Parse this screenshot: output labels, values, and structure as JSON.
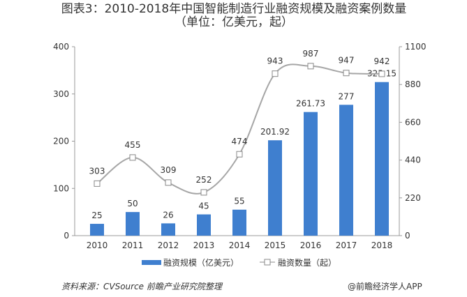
{
  "chart_data": {
    "type": "bar+line",
    "title": "图表3：2010-2018年中国智能制造行业融资规模及融资案例数量（单位：亿美元，起）",
    "categories": [
      "2010",
      "2011",
      "2012",
      "2013",
      "2014",
      "2015",
      "2016",
      "2017",
      "2018"
    ],
    "series": [
      {
        "name": "融资规模（亿美元）",
        "type": "bar",
        "axis": "left",
        "values": [
          25,
          50,
          26,
          45,
          55,
          201.92,
          261.73,
          277,
          325.15
        ],
        "labels": [
          "25",
          "50",
          "26",
          "45",
          "55",
          "201.92",
          "261.73",
          "277",
          "325.15"
        ],
        "color": "#3f7fcf"
      },
      {
        "name": "融资数量（起）",
        "type": "line",
        "axis": "right",
        "values": [
          303,
          455,
          309,
          252,
          474,
          943,
          987,
          947,
          942
        ],
        "labels": [
          "303",
          "455",
          "309",
          "252",
          "474",
          "943",
          "987",
          "947",
          "942"
        ],
        "color": "#a6a6a6"
      }
    ],
    "y_left": {
      "lim": [
        0,
        400
      ],
      "ticks": [
        "0",
        "100",
        "200",
        "300",
        "400"
      ]
    },
    "y_right": {
      "lim": [
        0,
        1100
      ],
      "ticks": [
        "0",
        "220",
        "440",
        "660",
        "880",
        "1100"
      ]
    },
    "grid": false,
    "legend": "bottom"
  },
  "footer": {
    "source": "资料来源：CVSource 前瞻产业研究院整理",
    "watermark": "@前瞻经济学人APP"
  }
}
